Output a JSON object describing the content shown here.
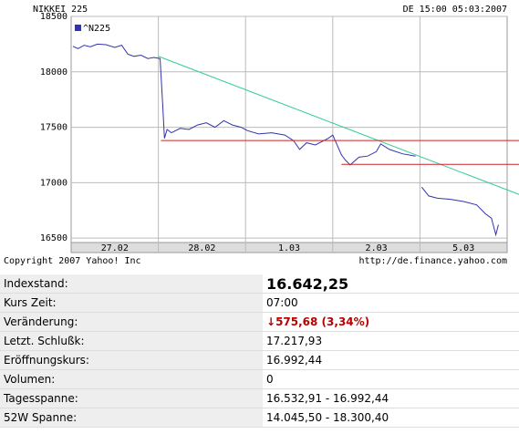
{
  "chart_data": {
    "type": "line",
    "title": "NIKKEI 225",
    "subtitle": "DE 15:00 05:03:2007",
    "footer_left": "Copyright 2007 Yahoo! Inc",
    "footer_right": "http://de.finance.yahoo.com",
    "xlim": [
      0,
      5
    ],
    "ylim": [
      16460,
      18500
    ],
    "yticks": [
      16500,
      17000,
      17500,
      18000,
      18500
    ],
    "xticks": [
      {
        "value": 0.5,
        "label": "27.02"
      },
      {
        "value": 1.5,
        "label": "28.02"
      },
      {
        "value": 2.5,
        "label": "1.03"
      },
      {
        "value": 3.5,
        "label": "2.03"
      },
      {
        "value": 4.5,
        "label": "5.03"
      }
    ],
    "xgrid": [
      1,
      2,
      3,
      4
    ],
    "grid": true,
    "legend": "top-left",
    "x": [
      0.02,
      0.08,
      0.15,
      0.22,
      0.3,
      0.4,
      0.5,
      0.58,
      0.65,
      0.72,
      0.8,
      0.88,
      0.95,
      1.02,
      1.05,
      1.07,
      1.1,
      1.15,
      1.25,
      1.35,
      1.45,
      1.55,
      1.65,
      1.75,
      1.85,
      1.95,
      2.02,
      2.15,
      2.3,
      2.45,
      2.55,
      2.62,
      2.7,
      2.8,
      2.95,
      3.0,
      3.1,
      3.15,
      3.2,
      3.3,
      3.4,
      3.5,
      3.55,
      3.65,
      3.8,
      3.95,
      null,
      4.02,
      4.1,
      4.2,
      4.35,
      4.5,
      4.65,
      4.75,
      4.82,
      4.87,
      4.9
    ],
    "series": [
      {
        "name": "^N225",
        "color": "#3333aa",
        "values": [
          18230,
          18210,
          18240,
          18225,
          18250,
          18245,
          18220,
          18240,
          18160,
          18140,
          18150,
          18120,
          18130,
          18120,
          17700,
          17400,
          17480,
          17450,
          17490,
          17480,
          17520,
          17540,
          17500,
          17560,
          17520,
          17500,
          17470,
          17440,
          17450,
          17430,
          17380,
          17300,
          17360,
          17340,
          17400,
          17430,
          17250,
          17200,
          17160,
          17230,
          17240,
          17280,
          17350,
          17300,
          17260,
          17240,
          null,
          16960,
          16880,
          16860,
          16850,
          16830,
          16800,
          16720,
          16680,
          16530,
          16620
        ]
      }
    ],
    "trend_lines": [
      {
        "color": "#33cc99",
        "x": [
          1.0,
          5.15
        ],
        "values": [
          18140,
          16890
        ]
      },
      {
        "color": "#cc2222",
        "x": [
          1.03,
          5.15
        ],
        "values": [
          17380,
          17380
        ]
      },
      {
        "color": "#cc2222",
        "x": [
          3.1,
          5.15
        ],
        "values": [
          17165,
          17165
        ]
      }
    ]
  },
  "table": {
    "rows": [
      [
        "Indexstand:",
        "16.642,25"
      ],
      [
        "Kurs Zeit:",
        "07:00"
      ],
      [
        "Veränderung:",
        "575,68 (3,34%)"
      ],
      [
        "Letzt. Schlußk:",
        "17.217,93"
      ],
      [
        "Eröffnungskurs:",
        "16.992,44"
      ],
      [
        "Volumen:",
        "0"
      ],
      [
        "Tagesspanne:",
        "16.532,91 - 16.992,44"
      ],
      [
        "52W Spanne:",
        "14.045,50 - 18.300,40"
      ]
    ]
  }
}
